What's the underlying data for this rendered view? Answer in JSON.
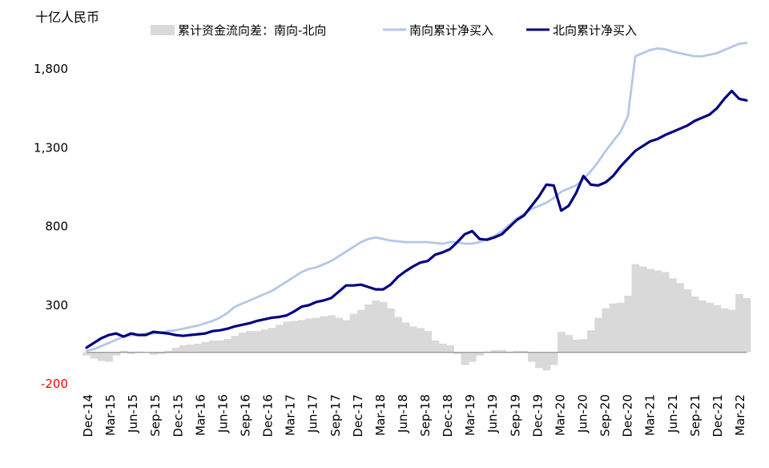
{
  "chart_data": {
    "type": "line",
    "unit_label": "十亿人民币",
    "ylim": [
      -200,
      2000
    ],
    "yticks": [
      -200,
      300,
      800,
      1300,
      1800
    ],
    "ytick_labels": [
      "-200",
      "300",
      "800",
      "1,300",
      "1,800"
    ],
    "negative_tick_color": "#ff0000",
    "grid": false,
    "legend_position": "top",
    "x_tick_labels": [
      "Dec-14",
      "Mar-15",
      "Jun-15",
      "Sep-15",
      "Dec-15",
      "Mar-16",
      "Jun-16",
      "Sep-16",
      "Dec-16",
      "Mar-17",
      "Jun-17",
      "Sep-17",
      "Dec-17",
      "Mar-18",
      "Jun-18",
      "Sep-18",
      "Dec-18",
      "Mar-19",
      "Jun-19",
      "Sep-19",
      "Dec-19",
      "Mar-20",
      "Jun-20",
      "Sep-20",
      "Dec-20",
      "Mar-21",
      "Jun-21",
      "Sep-21",
      "Dec-21",
      "Mar-22"
    ],
    "x": [
      "Dec-14",
      "Jan-15",
      "Feb-15",
      "Mar-15",
      "Apr-15",
      "May-15",
      "Jun-15",
      "Jul-15",
      "Aug-15",
      "Sep-15",
      "Oct-15",
      "Nov-15",
      "Dec-15",
      "Jan-16",
      "Feb-16",
      "Mar-16",
      "Apr-16",
      "May-16",
      "Jun-16",
      "Jul-16",
      "Aug-16",
      "Sep-16",
      "Oct-16",
      "Nov-16",
      "Dec-16",
      "Jan-17",
      "Feb-17",
      "Mar-17",
      "Apr-17",
      "May-17",
      "Jun-17",
      "Jul-17",
      "Aug-17",
      "Sep-17",
      "Oct-17",
      "Nov-17",
      "Dec-17",
      "Jan-18",
      "Feb-18",
      "Mar-18",
      "Apr-18",
      "May-18",
      "Jun-18",
      "Jul-18",
      "Aug-18",
      "Sep-18",
      "Oct-18",
      "Nov-18",
      "Dec-18",
      "Jan-19",
      "Feb-19",
      "Mar-19",
      "Apr-19",
      "May-19",
      "Jun-19",
      "Jul-19",
      "Aug-19",
      "Sep-19",
      "Oct-19",
      "Nov-19",
      "Dec-19",
      "Jan-20",
      "Feb-20",
      "Mar-20",
      "Apr-20",
      "May-20",
      "Jun-20",
      "Jul-20",
      "Aug-20",
      "Sep-20",
      "Oct-20",
      "Nov-20",
      "Dec-20",
      "Jan-21",
      "Feb-21",
      "Mar-21",
      "Apr-21",
      "May-21",
      "Jun-21",
      "Jul-21",
      "Aug-21",
      "Sep-21",
      "Oct-21",
      "Nov-21",
      "Dec-21",
      "Jan-22",
      "Feb-22",
      "Mar-22",
      "Apr-22",
      "May-22"
    ],
    "series": [
      {
        "name": "累计资金流向差：南向-北向",
        "type": "area",
        "color": "#d9d9d9",
        "values": [
          -20,
          -40,
          -55,
          -60,
          -20,
          10,
          -10,
          5,
          0,
          -15,
          -10,
          10,
          30,
          45,
          50,
          55,
          65,
          75,
          75,
          85,
          105,
          125,
          135,
          135,
          145,
          155,
          175,
          195,
          200,
          205,
          215,
          220,
          230,
          235,
          220,
          205,
          245,
          270,
          305,
          330,
          320,
          280,
          225,
          190,
          165,
          155,
          135,
          75,
          55,
          45,
          -10,
          -80,
          -60,
          -20,
          5,
          15,
          15,
          5,
          10,
          10,
          -60,
          -100,
          -115,
          -80,
          130,
          110,
          80,
          85,
          140,
          220,
          280,
          310,
          315,
          360,
          560,
          545,
          530,
          520,
          510,
          470,
          440,
          400,
          355,
          330,
          315,
          300,
          280,
          270,
          370,
          345
        ]
      },
      {
        "name": "南向累计净买入",
        "type": "line",
        "color": "#b4c7e7",
        "values": [
          10,
          20,
          40,
          60,
          80,
          100,
          110,
          110,
          120,
          120,
          125,
          135,
          140,
          150,
          160,
          170,
          185,
          200,
          220,
          250,
          290,
          310,
          330,
          350,
          370,
          390,
          420,
          450,
          480,
          510,
          530,
          540,
          560,
          580,
          610,
          640,
          670,
          700,
          720,
          730,
          720,
          710,
          705,
          700,
          700,
          700,
          700,
          695,
          690,
          700,
          700,
          690,
          690,
          700,
          720,
          740,
          770,
          810,
          850,
          880,
          910,
          930,
          950,
          980,
          1020,
          1040,
          1060,
          1100,
          1150,
          1210,
          1280,
          1340,
          1400,
          1500,
          1880,
          1900,
          1920,
          1930,
          1925,
          1910,
          1900,
          1890,
          1880,
          1880,
          1890,
          1900,
          1920,
          1940,
          1960,
          1965
        ]
      },
      {
        "name": "北向累计净买入",
        "type": "line",
        "color": "#000080",
        "values": [
          30,
          60,
          90,
          110,
          120,
          100,
          120,
          110,
          110,
          130,
          125,
          120,
          110,
          105,
          110,
          115,
          120,
          135,
          140,
          150,
          165,
          175,
          185,
          200,
          210,
          220,
          225,
          235,
          260,
          290,
          300,
          320,
          330,
          345,
          385,
          425,
          425,
          430,
          415,
          400,
          400,
          430,
          480,
          515,
          545,
          570,
          580,
          620,
          635,
          655,
          700,
          750,
          770,
          720,
          715,
          730,
          750,
          795,
          840,
          870,
          930,
          990,
          1065,
          1060,
          900,
          930,
          1010,
          1120,
          1065,
          1060,
          1080,
          1120,
          1180,
          1230,
          1280,
          1310,
          1340,
          1355,
          1380,
          1400,
          1420,
          1440,
          1470,
          1490,
          1510,
          1550,
          1610,
          1660,
          1610,
          1600
        ]
      }
    ]
  }
}
